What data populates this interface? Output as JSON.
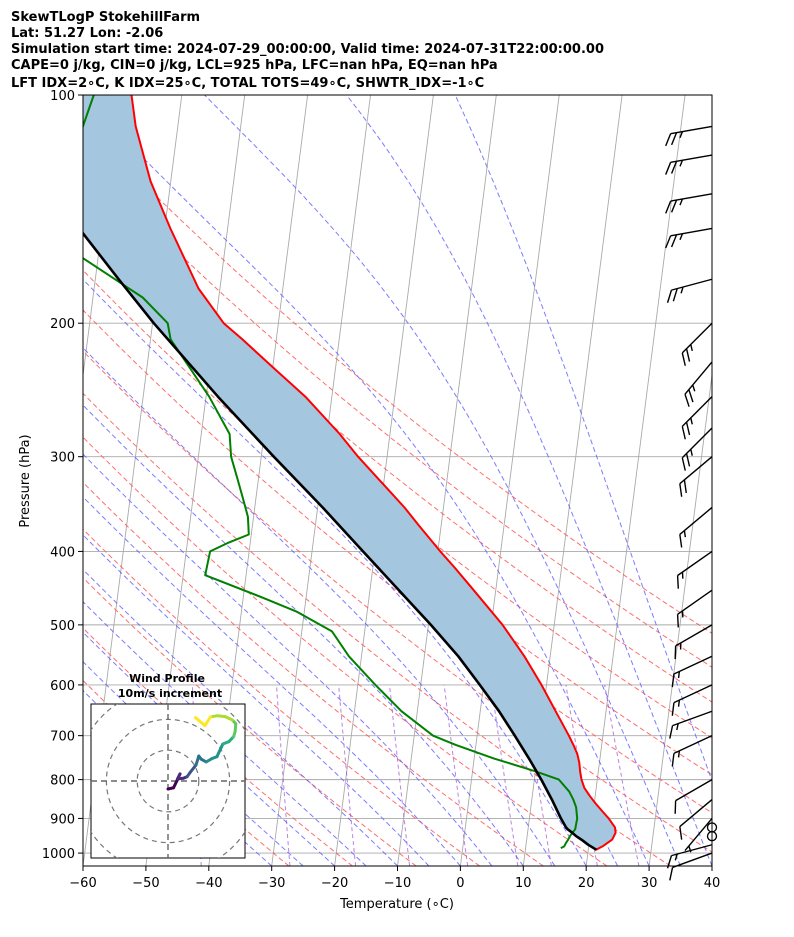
{
  "header": {
    "title": "SkewTLogP StokehillFarm",
    "location": "Lat: 51.27   Lon: -2.06",
    "times": "Simulation start time: 2024-07-29_00:00:00, Valid time: 2024-07-31T22:00:00.00",
    "params1": "CAPE=0 j/kg, CIN=0 j/kg, LCL=925 hPa, LFC=nan hPa, EQ=nan hPa",
    "params2": "LFT IDX=2∘C, K IDX=25∘C, TOTAL TOTS=49∘C, SHWTR_IDX=-1∘C"
  },
  "colors": {
    "temperature": "#ff0000",
    "dewpoint": "#008000",
    "parcel": "#000000",
    "cape_fill": "#a4c6df",
    "dry_adiabat": "#ff5555",
    "moist_adiabat": "#5b5bff",
    "mixing_ratio": "#9c4fd6",
    "isotherm": "#aaaaaa"
  },
  "chart_data": [
    {
      "type": "line",
      "subtype": "skew-T log-P",
      "xlabel": "Temperature (∘C)",
      "ylabel": "Pressure (hPa)",
      "xlim": [
        -60,
        40
      ],
      "ylim": [
        1040,
        100
      ],
      "y_scale": "log",
      "x_ticks": [
        -60,
        -50,
        -40,
        -30,
        -20,
        -10,
        0,
        10,
        20,
        30,
        40
      ],
      "x_tick_labels": [
        "−60",
        "−50",
        "−40",
        "−30",
        "−20",
        "−10",
        "0",
        "10",
        "20",
        "30",
        "40"
      ],
      "y_ticks": [
        1000,
        900,
        800,
        700,
        600,
        500,
        400,
        300,
        200,
        100
      ],
      "grid": true,
      "series": [
        {
          "key": "temperature",
          "pressure": [
            990,
            980,
            960,
            940,
            925,
            900,
            880,
            860,
            840,
            820,
            800,
            780,
            760,
            740,
            720,
            700,
            650,
            600,
            550,
            500,
            450,
            420,
            400,
            370,
            350,
            330,
            300,
            280,
            250,
            230,
            210,
            200,
            180,
            150,
            130,
            110,
            100
          ],
          "values": [
            21.2,
            22.2,
            23.6,
            24.0,
            23.8,
            22.6,
            21.4,
            20.2,
            19.1,
            18.1,
            17.5,
            17.1,
            16.8,
            16.3,
            15.5,
            14.6,
            12.0,
            9.2,
            5.9,
            1.8,
            -3.5,
            -7.0,
            -9.6,
            -13.5,
            -16.2,
            -19.4,
            -24.6,
            -28.0,
            -34.2,
            -39.6,
            -45.4,
            -48.7,
            -53.4,
            -59.1,
            -63.2,
            -66.7,
            -68.0
          ]
        },
        {
          "key": "dewpoint",
          "pressure": [
            985,
            980,
            970,
            960,
            950,
            930,
            900,
            870,
            850,
            830,
            800,
            780,
            750,
            720,
            700,
            650,
            600,
            550,
            510,
            480,
            460,
            430,
            400,
            390,
            380,
            360,
            340,
            320,
            300,
            280,
            250,
            230,
            210,
            200,
            185,
            160,
            150,
            130,
            100
          ],
          "values": [
            15.6,
            16.1,
            16.3,
            16.6,
            16.8,
            17.5,
            17.6,
            17.2,
            16.6,
            15.8,
            13.9,
            10.0,
            3.1,
            -3.2,
            -7.0,
            -12.5,
            -17.2,
            -22.0,
            -25.2,
            -31.3,
            -37.0,
            -46.5,
            -46.2,
            -43.6,
            -40.4,
            -40.9,
            -42.1,
            -43.4,
            -44.8,
            -45.5,
            -49.5,
            -53.0,
            -56.8,
            -57.6,
            -62.1,
            -74.6,
            -76.1,
            -77.0,
            -74.0
          ]
        },
        {
          "key": "parcel",
          "pressure": [
            990,
            975,
            960,
            950,
            940,
            930,
            925,
            900,
            850,
            800,
            750,
            700,
            650,
            600,
            550,
            500,
            450,
            400,
            350,
            300,
            250,
            200,
            175,
            150,
            125,
            100
          ],
          "values": [
            21.3,
            19.9,
            18.7,
            17.8,
            17.1,
            16.3,
            16.0,
            15.0,
            13.2,
            11.1,
            8.7,
            6.0,
            3.0,
            -0.6,
            -4.6,
            -9.6,
            -15.4,
            -21.9,
            -29.2,
            -38.0,
            -48.1,
            -59.8,
            -66.3,
            -73.6,
            -81.6,
            -90.6
          ]
        }
      ],
      "wind_barbs": [
        {
          "pressure": 1000,
          "speed_kt": 10,
          "direction_deg": 250
        },
        {
          "pressure": 975,
          "speed_kt": 15,
          "direction_deg": 255
        },
        {
          "pressure": 950,
          "speed_kt": 0,
          "direction_deg": 0
        },
        {
          "pressure": 925,
          "speed_kt": 0,
          "direction_deg": 0
        },
        {
          "pressure": 900,
          "speed_kt": 5,
          "direction_deg": 220
        },
        {
          "pressure": 850,
          "speed_kt": 10,
          "direction_deg": 230
        },
        {
          "pressure": 800,
          "speed_kt": 10,
          "direction_deg": 240
        },
        {
          "pressure": 700,
          "speed_kt": 15,
          "direction_deg": 245
        },
        {
          "pressure": 650,
          "speed_kt": 15,
          "direction_deg": 250
        },
        {
          "pressure": 600,
          "speed_kt": 15,
          "direction_deg": 245
        },
        {
          "pressure": 550,
          "speed_kt": 15,
          "direction_deg": 245
        },
        {
          "pressure": 500,
          "speed_kt": 15,
          "direction_deg": 240
        },
        {
          "pressure": 450,
          "speed_kt": 15,
          "direction_deg": 235
        },
        {
          "pressure": 400,
          "speed_kt": 15,
          "direction_deg": 235
        },
        {
          "pressure": 350,
          "speed_kt": 15,
          "direction_deg": 230
        },
        {
          "pressure": 300,
          "speed_kt": 20,
          "direction_deg": 230
        },
        {
          "pressure": 275,
          "speed_kt": 25,
          "direction_deg": 225
        },
        {
          "pressure": 250,
          "speed_kt": 25,
          "direction_deg": 225
        },
        {
          "pressure": 225,
          "speed_kt": 25,
          "direction_deg": 220
        },
        {
          "pressure": 200,
          "speed_kt": 25,
          "direction_deg": 225
        },
        {
          "pressure": 175,
          "speed_kt": 25,
          "direction_deg": 255
        },
        {
          "pressure": 150,
          "speed_kt": 25,
          "direction_deg": 260
        },
        {
          "pressure": 135,
          "speed_kt": 25,
          "direction_deg": 260
        },
        {
          "pressure": 120,
          "speed_kt": 25,
          "direction_deg": 260
        },
        {
          "pressure": 110,
          "speed_kt": 25,
          "direction_deg": 260
        }
      ]
    },
    {
      "type": "scatter",
      "subtype": "hodograph",
      "title": "Wind Profile",
      "subtitle": "10m/s increment",
      "xlim": [
        -25,
        25
      ],
      "ylim": [
        -25,
        25
      ],
      "ring_spacing_ms": 10,
      "u": [
        0.0,
        1.8,
        3.0,
        3.9,
        3.1,
        5.0,
        6.2,
        7.2,
        9.1,
        10.0,
        10.8,
        12.4,
        14.3,
        15.9,
        17.8,
        19.8,
        21.3,
        21.8,
        22.0,
        20.9,
        18.6,
        16.1,
        13.8,
        12.0,
        8.9
      ],
      "v": [
        -2.6,
        -2.2,
        0.3,
        2.3,
        0.7,
        0.9,
        1.4,
        2.8,
        5.2,
        8.1,
        7.1,
        6.2,
        7.3,
        7.9,
        12.0,
        12.8,
        14.4,
        16.1,
        18.6,
        19.8,
        20.9,
        21.2,
        20.8,
        18.0,
        20.6
      ]
    }
  ]
}
